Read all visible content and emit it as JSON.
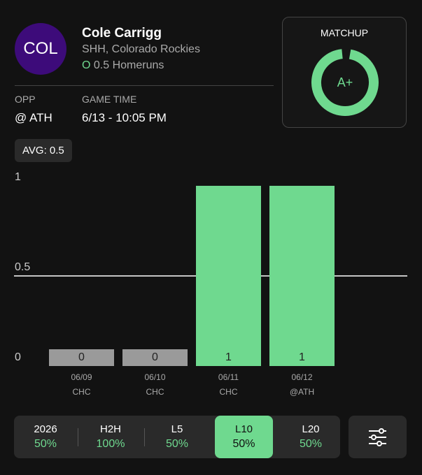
{
  "header": {
    "avatar": "COL",
    "name": "Cole Carrigg",
    "team": "SHH, Colorado Rockies",
    "pick_marker": "O",
    "pick": "0.5 Homeruns"
  },
  "info": {
    "opp_label": "OPP",
    "opp": "@ ATH",
    "time_label": "GAME TIME",
    "time": "6/13 - 10:05 PM"
  },
  "matchup": {
    "title": "MATCHUP",
    "grade": "A+"
  },
  "avg": "AVG: 0.5",
  "chart_data": {
    "type": "bar",
    "categories": [
      "06/09",
      "06/10",
      "06/11",
      "06/12"
    ],
    "opponents": [
      "CHC",
      "CHC",
      "CHC",
      "@ATH"
    ],
    "values": [
      0,
      0,
      1,
      1
    ],
    "color": "#6fd98f",
    "empty_color": "#9a9a9a",
    "ylim": [
      0,
      1
    ],
    "yticks": [
      0,
      0.5,
      1
    ],
    "threshold": 0.5
  },
  "tabs": [
    {
      "label": "2026",
      "value": "50%"
    },
    {
      "label": "H2H",
      "value": "100%"
    },
    {
      "label": "L5",
      "value": "50%"
    },
    {
      "label": "L10",
      "value": "50%"
    },
    {
      "label": "L20",
      "value": "50%"
    }
  ]
}
